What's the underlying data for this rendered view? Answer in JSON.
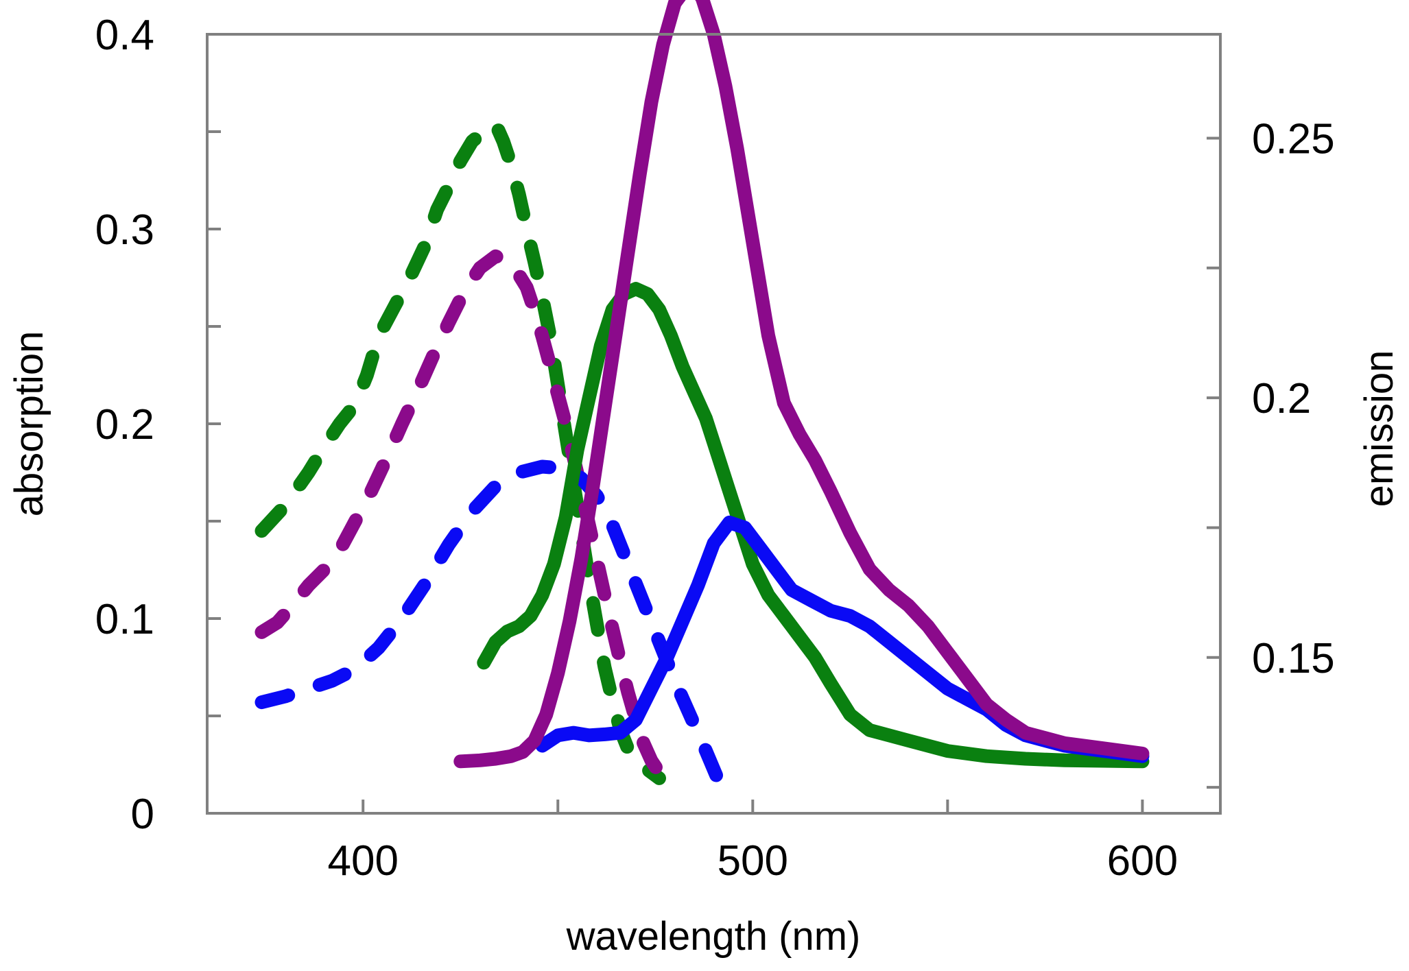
{
  "chart_data": {
    "type": "line",
    "xlabel": "wavelength (nm)",
    "ylabel_left": "absorption",
    "ylabel_right": "emission",
    "xlim": [
      360,
      620
    ],
    "ylim_left": [
      0,
      0.4
    ],
    "ylim_right": [
      0.12,
      0.27
    ],
    "x_ticks": [
      {
        "value": 400,
        "label": "400"
      },
      {
        "value": 450,
        "label": ""
      },
      {
        "value": 500,
        "label": "500"
      },
      {
        "value": 550,
        "label": ""
      },
      {
        "value": 600,
        "label": "600"
      }
    ],
    "y_left_ticks": [
      {
        "value": 0,
        "label": "0"
      },
      {
        "value": 0.05,
        "label": ""
      },
      {
        "value": 0.1,
        "label": "0.1"
      },
      {
        "value": 0.15,
        "label": ""
      },
      {
        "value": 0.2,
        "label": "0.2"
      },
      {
        "value": 0.25,
        "label": ""
      },
      {
        "value": 0.3,
        "label": "0.3"
      },
      {
        "value": 0.35,
        "label": ""
      },
      {
        "value": 0.4,
        "label": "0.4"
      }
    ],
    "y_right_ticks": [
      {
        "value": 0.125,
        "label": ""
      },
      {
        "value": 0.15,
        "label": "0.15"
      },
      {
        "value": 0.175,
        "label": ""
      },
      {
        "value": 0.2,
        "label": "0.2"
      },
      {
        "value": 0.225,
        "label": ""
      },
      {
        "value": 0.25,
        "label": "0.25"
      }
    ],
    "series": [
      {
        "name": "green absorption",
        "color": "#0a8010",
        "axis": "left",
        "style": "dashed",
        "x": [
          374,
          380,
          386,
          390,
          394,
          398,
          401,
          404,
          408,
          412,
          416,
          419,
          422,
          425,
          428,
          431,
          434,
          436,
          438,
          440,
          442,
          444,
          446,
          448,
          450,
          452,
          454,
          456,
          458,
          460,
          462,
          464,
          466,
          468,
          470,
          472,
          474,
          476
        ],
        "y": [
          0.145,
          0.158,
          0.175,
          0.188,
          0.2,
          0.21,
          0.225,
          0.245,
          0.26,
          0.275,
          0.292,
          0.31,
          0.322,
          0.335,
          0.345,
          0.35,
          0.354,
          0.345,
          0.333,
          0.318,
          0.3,
          0.283,
          0.265,
          0.245,
          0.22,
          0.195,
          0.17,
          0.145,
          0.12,
          0.097,
          0.075,
          0.058,
          0.043,
          0.033,
          0.027,
          0.024,
          0.021,
          0.018
        ]
      },
      {
        "name": "purple absorption",
        "color": "#8b0a8b",
        "axis": "left",
        "style": "dashed",
        "x": [
          374,
          378,
          382,
          386,
          390,
          394,
          398,
          402,
          406,
          410,
          414,
          418,
          422,
          426,
          430,
          434,
          438,
          442,
          444,
          446,
          448,
          450,
          452,
          454,
          456,
          458,
          460,
          462,
          464,
          466,
          468,
          470,
          472,
          474,
          476,
          478
        ],
        "y": [
          0.093,
          0.098,
          0.107,
          0.117,
          0.125,
          0.135,
          0.15,
          0.165,
          0.182,
          0.2,
          0.217,
          0.235,
          0.252,
          0.268,
          0.28,
          0.286,
          0.283,
          0.27,
          0.258,
          0.245,
          0.23,
          0.215,
          0.2,
          0.183,
          0.166,
          0.148,
          0.13,
          0.112,
          0.095,
          0.078,
          0.062,
          0.048,
          0.036,
          0.027,
          0.021,
          0.016
        ]
      },
      {
        "name": "blue absorption",
        "color": "#0a0af5",
        "axis": "left",
        "style": "dashed",
        "x": [
          374,
          380,
          386,
          392,
          398,
          404,
          410,
          416,
          422,
          428,
          434,
          440,
          446,
          452,
          456,
          460,
          464,
          468,
          472,
          476,
          480,
          484,
          488,
          492
        ],
        "y": [
          0.057,
          0.06,
          0.064,
          0.068,
          0.074,
          0.085,
          0.1,
          0.118,
          0.138,
          0.155,
          0.168,
          0.175,
          0.178,
          0.177,
          0.172,
          0.163,
          0.148,
          0.128,
          0.108,
          0.088,
          0.068,
          0.05,
          0.032,
          0.013
        ]
      },
      {
        "name": "green emission",
        "color": "#0a8010",
        "axis": "right",
        "style": "solid",
        "x": [
          431,
          434,
          437,
          440,
          443,
          446,
          449,
          452,
          455,
          458,
          461,
          464,
          467,
          470,
          473,
          476,
          479,
          482,
          485,
          488,
          491,
          494,
          497,
          500,
          504,
          508,
          512,
          516,
          520,
          525,
          530,
          535,
          540,
          550,
          560,
          570,
          580,
          590,
          600
        ],
        "y": [
          0.149,
          0.153,
          0.155,
          0.156,
          0.158,
          0.162,
          0.168,
          0.177,
          0.19,
          0.2,
          0.21,
          0.217,
          0.22,
          0.221,
          0.22,
          0.217,
          0.212,
          0.206,
          0.201,
          0.196,
          0.189,
          0.182,
          0.175,
          0.168,
          0.162,
          0.158,
          0.154,
          0.15,
          0.145,
          0.139,
          0.136,
          0.135,
          0.134,
          0.132,
          0.131,
          0.1305,
          0.1302,
          0.1301,
          0.13
        ]
      },
      {
        "name": "blue emission",
        "color": "#0a0af5",
        "axis": "right",
        "style": "solid",
        "x": [
          446,
          450,
          454,
          458,
          462,
          466,
          470,
          474,
          478,
          482,
          486,
          490,
          494,
          498,
          502,
          506,
          510,
          515,
          520,
          525,
          530,
          535,
          540,
          545,
          550,
          555,
          560,
          565,
          570,
          575,
          580,
          585,
          590,
          595,
          600
        ],
        "y": [
          0.133,
          0.135,
          0.1355,
          0.135,
          0.1352,
          0.1355,
          0.138,
          0.144,
          0.15,
          0.157,
          0.164,
          0.172,
          0.176,
          0.175,
          0.171,
          0.167,
          0.163,
          0.161,
          0.159,
          0.158,
          0.156,
          0.153,
          0.15,
          0.147,
          0.144,
          0.142,
          0.14,
          0.137,
          0.135,
          0.134,
          0.133,
          0.1325,
          0.132,
          0.1315,
          0.131
        ]
      },
      {
        "name": "purple emission",
        "color": "#8b0a8b",
        "axis": "right",
        "style": "solid",
        "x": [
          425,
          430,
          434,
          438,
          441,
          444,
          447,
          450,
          453,
          456,
          459,
          462,
          465,
          468,
          471,
          474,
          477,
          480,
          483,
          485,
          487,
          490,
          493,
          496,
          500,
          504,
          508,
          512,
          516,
          520,
          525,
          530,
          535,
          540,
          545,
          550,
          555,
          560,
          565,
          570,
          575,
          580,
          590,
          600
        ],
        "y": [
          0.13,
          0.1302,
          0.1305,
          0.131,
          0.1318,
          0.134,
          0.139,
          0.147,
          0.157,
          0.169,
          0.183,
          0.198,
          0.213,
          0.228,
          0.243,
          0.257,
          0.268,
          0.276,
          0.279,
          0.279,
          0.277,
          0.27,
          0.26,
          0.248,
          0.23,
          0.212,
          0.199,
          0.193,
          0.188,
          0.182,
          0.174,
          0.167,
          0.163,
          0.16,
          0.156,
          0.151,
          0.146,
          0.141,
          0.138,
          0.1355,
          0.1345,
          0.1335,
          0.1325,
          0.1315
        ]
      }
    ]
  }
}
